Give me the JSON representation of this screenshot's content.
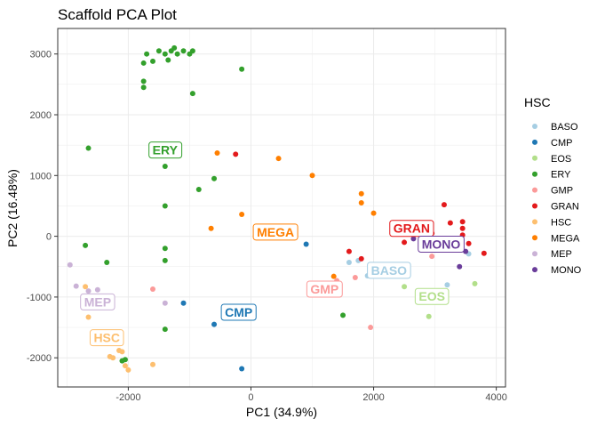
{
  "chart_data": {
    "type": "scatter",
    "title": "Scaffold PCA Plot",
    "xlabel": "PC1 (34.9%)",
    "ylabel": "PC2 (16.48%)",
    "xlim": [
      -3150,
      4150
    ],
    "ylim": [
      -2480,
      3420
    ],
    "xticks": [
      -2000,
      0,
      2000,
      4000
    ],
    "xtick_labels": [
      "-2000",
      "0",
      "2000",
      "4000"
    ],
    "yticks": [
      -2000,
      -1000,
      0,
      1000,
      2000,
      3000
    ],
    "ytick_labels": [
      "-2000",
      "-1000",
      "0",
      "1000",
      "2000",
      "3000"
    ],
    "grid": true,
    "legend_title": "HSC",
    "legend_position": "right",
    "series": [
      {
        "name": "BASO",
        "color": "#a6cee3",
        "points": [
          [
            1600,
            -430
          ],
          [
            1750,
            -400
          ],
          [
            1900,
            -650
          ],
          [
            3550,
            -290
          ],
          [
            3200,
            -800
          ]
        ]
      },
      {
        "name": "CMP",
        "color": "#1f78b4",
        "points": [
          [
            -1100,
            -1100
          ],
          [
            -600,
            -1450
          ],
          [
            -150,
            -2180
          ],
          [
            900,
            -130
          ]
        ]
      },
      {
        "name": "EOS",
        "color": "#b2df8a",
        "points": [
          [
            2500,
            -830
          ],
          [
            2900,
            -1320
          ],
          [
            3650,
            -780
          ]
        ]
      },
      {
        "name": "ERY",
        "color": "#33a02c",
        "points": [
          [
            -1750,
            2850
          ],
          [
            -1700,
            3000
          ],
          [
            -1600,
            2880
          ],
          [
            -1500,
            3050
          ],
          [
            -1400,
            3000
          ],
          [
            -1300,
            3050
          ],
          [
            -1250,
            3100
          ],
          [
            -1200,
            3000
          ],
          [
            -1100,
            3050
          ],
          [
            -1000,
            3000
          ],
          [
            -950,
            3050
          ],
          [
            -1750,
            2550
          ],
          [
            -1750,
            2450
          ],
          [
            -1350,
            2900
          ],
          [
            -150,
            2750
          ],
          [
            -950,
            2350
          ],
          [
            -2650,
            1450
          ],
          [
            -1400,
            1150
          ],
          [
            -600,
            950
          ],
          [
            -850,
            770
          ],
          [
            -1400,
            500
          ],
          [
            -2700,
            -150
          ],
          [
            -1400,
            -200
          ],
          [
            -1400,
            -400
          ],
          [
            -2350,
            -430
          ],
          [
            -1400,
            -1530
          ],
          [
            -2050,
            -2030
          ],
          [
            -2100,
            -2050
          ],
          [
            1500,
            -1300
          ]
        ]
      },
      {
        "name": "GMP",
        "color": "#fb9a99",
        "points": [
          [
            -1600,
            -870
          ],
          [
            1400,
            -730
          ],
          [
            1700,
            -680
          ],
          [
            1950,
            -1500
          ],
          [
            2950,
            -330
          ]
        ]
      },
      {
        "name": "GRAN",
        "color": "#e31a1c",
        "points": [
          [
            -250,
            1350
          ],
          [
            1600,
            -250
          ],
          [
            1800,
            -370
          ],
          [
            2500,
            -100
          ],
          [
            2950,
            50
          ],
          [
            3150,
            520
          ],
          [
            3250,
            220
          ],
          [
            3450,
            130
          ],
          [
            3450,
            240
          ],
          [
            3450,
            20
          ],
          [
            3800,
            -280
          ],
          [
            3550,
            -120
          ]
        ]
      },
      {
        "name": "HSC",
        "color": "#fdbf6f",
        "points": [
          [
            -2700,
            -830
          ],
          [
            -2650,
            -1330
          ],
          [
            -2150,
            -1880
          ],
          [
            -2100,
            -1900
          ],
          [
            -2300,
            -1980
          ],
          [
            -2250,
            -2000
          ],
          [
            -2050,
            -2130
          ],
          [
            -2000,
            -2200
          ],
          [
            -1600,
            -2110
          ]
        ]
      },
      {
        "name": "MEGA",
        "color": "#ff7f00",
        "points": [
          [
            -550,
            1370
          ],
          [
            450,
            1280
          ],
          [
            1000,
            1000
          ],
          [
            -650,
            130
          ],
          [
            -150,
            360
          ],
          [
            1800,
            700
          ],
          [
            1800,
            550
          ],
          [
            2000,
            380
          ],
          [
            1350,
            -660
          ]
        ]
      },
      {
        "name": "MEP",
        "color": "#cab2d6",
        "points": [
          [
            -2950,
            -470
          ],
          [
            -2850,
            -820
          ],
          [
            -2650,
            -900
          ],
          [
            -2500,
            -880
          ],
          [
            -1400,
            -1100
          ]
        ]
      },
      {
        "name": "MONO",
        "color": "#6a3d9a",
        "points": [
          [
            2650,
            -40
          ],
          [
            3000,
            -200
          ],
          [
            3200,
            -170
          ],
          [
            3400,
            -500
          ],
          [
            3500,
            -250
          ]
        ]
      }
    ],
    "cluster_labels": [
      {
        "text": "ERY",
        "color": "#33a02c",
        "x": -1400,
        "y": 1420
      },
      {
        "text": "MEGA",
        "color": "#ff7f00",
        "x": 400,
        "y": 70
      },
      {
        "text": "GRAN",
        "color": "#e31a1c",
        "x": 2620,
        "y": 130
      },
      {
        "text": "MONO",
        "color": "#6a3d9a",
        "x": 3100,
        "y": -130
      },
      {
        "text": "BASO",
        "color": "#a6cee3",
        "x": 2250,
        "y": -560
      },
      {
        "text": "GMP",
        "color": "#fb9a99",
        "x": 1200,
        "y": -870
      },
      {
        "text": "EOS",
        "color": "#b2df8a",
        "x": 2950,
        "y": -990
      },
      {
        "text": "MEP",
        "color": "#cab2d6",
        "x": -2500,
        "y": -1080
      },
      {
        "text": "CMP",
        "color": "#1f78b4",
        "x": -200,
        "y": -1250
      },
      {
        "text": "HSC",
        "color": "#fdbf6f",
        "x": -2350,
        "y": -1670
      }
    ]
  }
}
